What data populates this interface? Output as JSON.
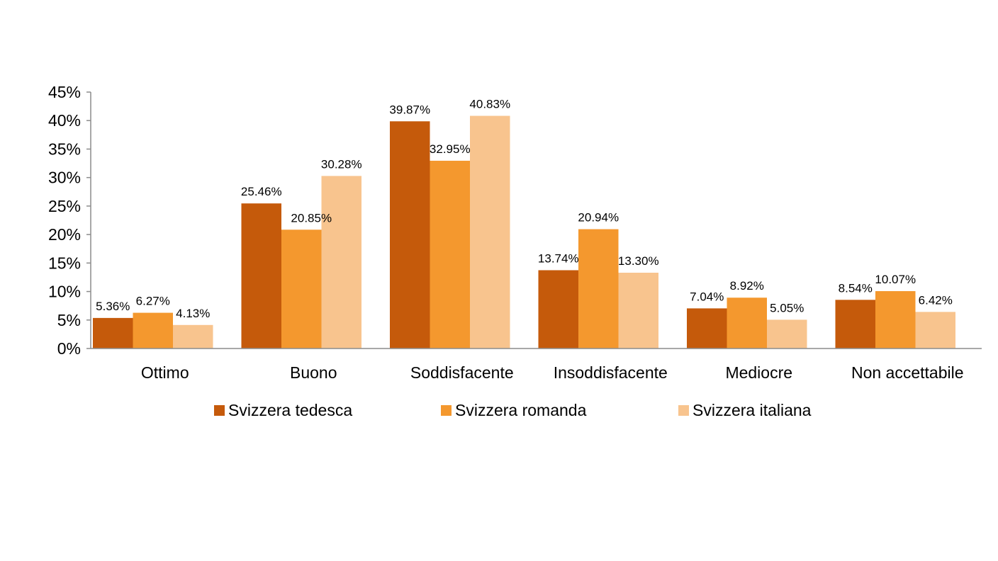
{
  "chart_data": {
    "type": "bar",
    "title": "",
    "xlabel": "",
    "ylabel": "",
    "ylim": [
      0,
      45
    ],
    "yticks": [
      0,
      5,
      10,
      15,
      20,
      25,
      30,
      35,
      40,
      45
    ],
    "ytick_labels": [
      "0%",
      "5%",
      "10%",
      "15%",
      "20%",
      "25%",
      "30%",
      "35%",
      "40%",
      "45%"
    ],
    "grid": false,
    "legend_position": "bottom",
    "categories": [
      "Ottimo",
      "Buono",
      "Soddisfacente",
      "Insoddisfacente",
      "Mediocre",
      "Non accettabile"
    ],
    "series": [
      {
        "name": "Svizzera tedesca",
        "color": "#c55a0b",
        "values": [
          5.36,
          25.46,
          39.87,
          13.74,
          7.04,
          8.54
        ],
        "labels": [
          "5.36%",
          "25.46%",
          "39.87%",
          "13.74%",
          "7.04%",
          "8.54%"
        ]
      },
      {
        "name": "Svizzera romanda",
        "color": "#f4982e",
        "values": [
          6.27,
          20.85,
          32.95,
          20.94,
          8.92,
          10.07
        ],
        "labels": [
          "6.27%",
          "20.85%",
          "32.95%",
          "20.94%",
          "8.92%",
          "10.07%"
        ]
      },
      {
        "name": "Svizzera italiana",
        "color": "#f8c48e",
        "values": [
          4.13,
          30.28,
          40.83,
          13.3,
          5.05,
          6.42
        ],
        "labels": [
          "4.13%",
          "30.28%",
          "40.83%",
          "13.30%",
          "5.05%",
          "6.42%"
        ]
      }
    ]
  }
}
